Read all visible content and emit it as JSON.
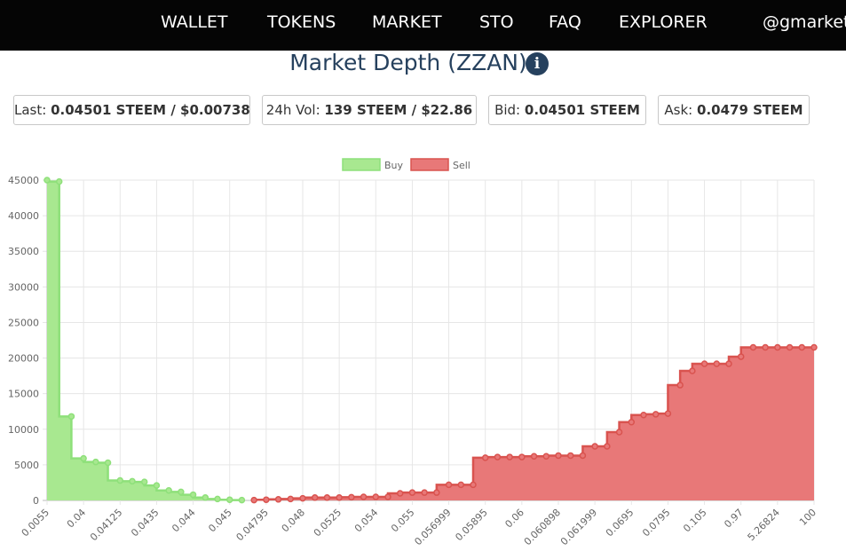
{
  "nav": {
    "items": [
      "WALLET",
      "TOKENS",
      "MARKET",
      "STO",
      "FAQ",
      "EXPLORER",
      "@gmarket"
    ]
  },
  "header": {
    "title": "Market Depth (ZZAN)"
  },
  "stats": [
    {
      "label": "Last:",
      "value": "0.04501 STEEM / $0.00738"
    },
    {
      "label": "24h Vol:",
      "value": "139 STEEM / $22.86"
    },
    {
      "label": "Bid:",
      "value": "0.04501 STEEM"
    },
    {
      "label": "Ask:",
      "value": "0.0479 STEEM"
    }
  ],
  "chart_data": {
    "type": "line",
    "stepped": true,
    "fill": true,
    "legend": "top",
    "grid": true,
    "categories": [
      "0.0055",
      null,
      null,
      "0.04",
      null,
      null,
      "0.04125",
      null,
      null,
      "0.0435",
      null,
      null,
      "0.044",
      null,
      null,
      "0.045",
      null,
      null,
      "0.04795",
      null,
      null,
      "0.048",
      null,
      null,
      "0.0525",
      null,
      null,
      "0.054",
      null,
      null,
      "0.055",
      null,
      null,
      "0.056999",
      null,
      null,
      "0.05895",
      null,
      null,
      "0.06",
      null,
      null,
      "0.060898",
      null,
      null,
      "0.061999",
      null,
      null,
      "0.0695",
      null,
      null,
      "0.0795",
      null,
      null,
      "0.105",
      null,
      null,
      "0.97",
      null,
      null,
      "5.26824",
      null,
      null,
      "100"
    ],
    "series": [
      {
        "name": "Buy",
        "color": "#8ee07a",
        "fill": "#a8e890",
        "values": [
          45000,
          44800,
          11800,
          5900,
          5400,
          5300,
          2800,
          2700,
          2600,
          2100,
          1400,
          1200,
          800,
          400,
          200,
          100,
          50,
          null,
          null,
          null,
          null,
          null,
          null,
          null,
          null,
          null,
          null,
          null,
          null,
          null,
          null,
          null,
          null,
          null,
          null,
          null,
          null,
          null,
          null,
          null,
          null,
          null,
          null,
          null,
          null,
          null,
          null,
          null,
          null,
          null,
          null,
          null,
          null,
          null,
          null,
          null,
          null,
          null,
          null,
          null,
          null,
          null,
          null,
          null
        ]
      },
      {
        "name": "Sell",
        "color": "#d9534f",
        "fill": "#e87878",
        "values": [
          null,
          null,
          null,
          null,
          null,
          null,
          null,
          null,
          null,
          null,
          null,
          null,
          null,
          null,
          null,
          null,
          null,
          50,
          100,
          150,
          200,
          300,
          400,
          400,
          400,
          450,
          500,
          500,
          500,
          1000,
          1100,
          1100,
          1100,
          2200,
          2200,
          2200,
          6000,
          6100,
          6100,
          6100,
          6200,
          6200,
          6300,
          6300,
          6300,
          7600,
          7600,
          9600,
          11000,
          12000,
          12100,
          12200,
          16200,
          18200,
          19200,
          19200,
          19200,
          20200,
          21500,
          21500,
          21500,
          21500,
          21500,
          21500
        ]
      }
    ],
    "ylim": [
      0,
      45000
    ],
    "yticks": [
      0,
      5000,
      10000,
      15000,
      20000,
      25000,
      30000,
      35000,
      40000,
      45000
    ]
  }
}
